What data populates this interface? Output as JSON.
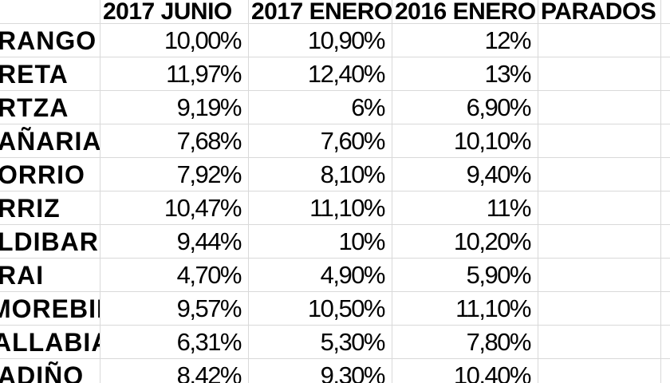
{
  "table": {
    "headers": {
      "name": "",
      "junio2017": "2017 JUNIO",
      "enero2017": "2017 ENERO",
      "enero2016": "2016 ENERO",
      "parados": "PARADOS"
    },
    "rows": [
      {
        "name": "RANGO",
        "values": [
          "10,00%",
          "10,90%",
          "12%",
          ""
        ]
      },
      {
        "name": "RETA",
        "values": [
          "11,97%",
          "12,40%",
          "13%",
          ""
        ]
      },
      {
        "name": "RTZA",
        "values": [
          "9,19%",
          "6%",
          "6,90%",
          ""
        ]
      },
      {
        "name": "AÑARIA",
        "values": [
          "7,68%",
          "7,60%",
          "10,10%",
          ""
        ]
      },
      {
        "name": "ORRIO",
        "values": [
          "7,92%",
          "8,10%",
          "9,40%",
          ""
        ]
      },
      {
        "name": "RRIZ",
        "values": [
          "10,47%",
          "11,10%",
          "11%",
          ""
        ]
      },
      {
        "name": "LDIBAR",
        "values": [
          "9,44%",
          "10%",
          "10,20%",
          ""
        ]
      },
      {
        "name": "RAI",
        "values": [
          "4,70%",
          "4,90%",
          "5,90%",
          ""
        ]
      },
      {
        "name": "MOREBIETA",
        "values": [
          "9,57%",
          "10,50%",
          "11,10%",
          ""
        ]
      },
      {
        "name": "ALLABIA",
        "values": [
          "6,31%",
          "5,30%",
          "7,80%",
          ""
        ]
      },
      {
        "name": "ADIÑO",
        "values": [
          "8,42%",
          "9,30%",
          "10,40%",
          ""
        ]
      }
    ]
  },
  "colors": {
    "background": "#ffffff",
    "text": "#000000",
    "gridline": "#d9d9d9"
  }
}
